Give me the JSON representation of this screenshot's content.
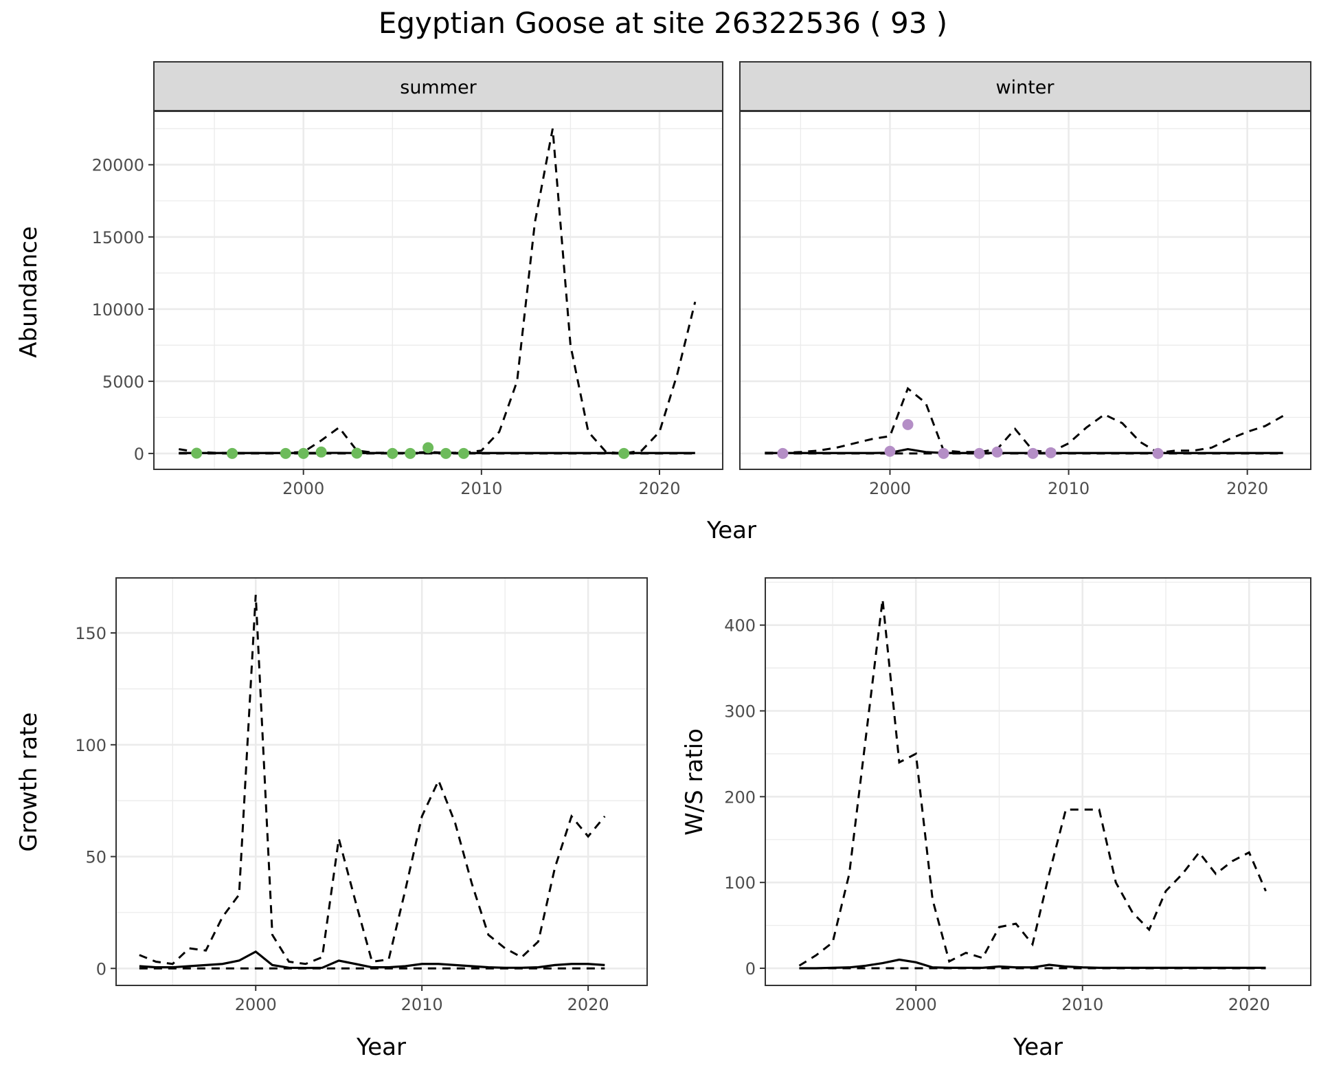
{
  "title": "Egyptian Goose at site 26322536 ( 93 )",
  "colors": {
    "summer_points": "#6dbb5b",
    "winter_points": "#b48ec6",
    "lines": "#000000",
    "strip_bg": "#d9d9d9",
    "grid": "#ebebeb"
  },
  "chart_data": [
    {
      "type": "line",
      "facet": "summer",
      "xlabel": "Year",
      "ylabel": "Abundance",
      "xlim": [
        1991.6,
        2023.55
      ],
      "ylim": [
        -1100,
        23700
      ],
      "xticks": [
        2000,
        2010,
        2020
      ],
      "yticks": [
        0,
        5000,
        10000,
        15000,
        20000
      ],
      "grid": true,
      "x": [
        1993,
        1994,
        1995,
        1996,
        1997,
        1998,
        1999,
        2000,
        2001,
        2002,
        2003,
        2004,
        2005,
        2006,
        2007,
        2008,
        2009,
        2010,
        2011,
        2012,
        2013,
        2014,
        2015,
        2016,
        2017,
        2018,
        2019,
        2020,
        2021,
        2022
      ],
      "upper": [
        300,
        100,
        50,
        30,
        30,
        30,
        50,
        100,
        900,
        1800,
        200,
        50,
        50,
        50,
        100,
        50,
        50,
        200,
        1500,
        5000,
        16000,
        22500,
        7500,
        1500,
        100,
        0,
        200,
        1500,
        5500,
        10500
      ],
      "fit": [
        30,
        30,
        30,
        30,
        30,
        30,
        30,
        30,
        40,
        40,
        30,
        30,
        30,
        30,
        40,
        30,
        30,
        30,
        30,
        30,
        30,
        30,
        30,
        30,
        30,
        30,
        30,
        30,
        30,
        30
      ],
      "lower": [
        0,
        0,
        0,
        0,
        0,
        0,
        0,
        0,
        0,
        0,
        0,
        0,
        0,
        0,
        0,
        0,
        0,
        0,
        0,
        0,
        0,
        0,
        0,
        0,
        0,
        0,
        0,
        0,
        0,
        0
      ],
      "points": {
        "x": [
          1994,
          1996,
          1999,
          2000,
          2001,
          2003,
          2005,
          2006,
          2007,
          2008,
          2009,
          2018
        ],
        "y": [
          20,
          0,
          0,
          0,
          100,
          20,
          0,
          0,
          400,
          0,
          0,
          0
        ]
      }
    },
    {
      "type": "line",
      "facet": "winter",
      "xlabel": "Year",
      "ylabel": "Abundance",
      "xlim": [
        1991.6,
        2023.55
      ],
      "ylim": [
        -1100,
        23700
      ],
      "xticks": [
        2000,
        2010,
        2020
      ],
      "yticks": [
        0,
        5000,
        10000,
        15000,
        20000
      ],
      "grid": true,
      "x": [
        1993,
        1994,
        1995,
        1996,
        1997,
        1998,
        1999,
        2000,
        2001,
        2002,
        2003,
        2004,
        2005,
        2006,
        2007,
        2008,
        2009,
        2010,
        2011,
        2012,
        2013,
        2014,
        2015,
        2016,
        2017,
        2018,
        2019,
        2020,
        2021,
        2022
      ],
      "upper": [
        50,
        50,
        100,
        200,
        400,
        700,
        1000,
        1200,
        4500,
        3500,
        200,
        100,
        100,
        300,
        1700,
        200,
        100,
        700,
        1800,
        2700,
        2100,
        800,
        50,
        200,
        200,
        400,
        1000,
        1500,
        1900,
        2600
      ],
      "fit": [
        30,
        30,
        30,
        30,
        30,
        30,
        30,
        50,
        300,
        100,
        30,
        30,
        30,
        30,
        30,
        30,
        30,
        30,
        30,
        30,
        30,
        30,
        30,
        30,
        30,
        30,
        30,
        30,
        30,
        30
      ],
      "lower": [
        0,
        0,
        0,
        0,
        0,
        0,
        0,
        0,
        0,
        0,
        0,
        0,
        0,
        0,
        0,
        0,
        0,
        0,
        0,
        0,
        0,
        0,
        0,
        0,
        0,
        0,
        0,
        0,
        0,
        0
      ],
      "points": {
        "x": [
          1994,
          2000,
          2001,
          2003,
          2005,
          2006,
          2008,
          2009,
          2015
        ],
        "y": [
          0,
          150,
          2000,
          0,
          0,
          100,
          0,
          50,
          0
        ]
      }
    },
    {
      "type": "line",
      "xlabel": "Year",
      "ylabel": "Growth rate",
      "xlim": [
        1991.6,
        2023.55
      ],
      "ylim": [
        -7.6,
        174.6
      ],
      "xticks": [
        2000,
        2010,
        2020
      ],
      "yticks": [
        0,
        50,
        100,
        150
      ],
      "grid": true,
      "x": [
        1993,
        1994,
        1995,
        1996,
        1997,
        1998,
        1999,
        2000,
        2001,
        2002,
        2003,
        2004,
        2005,
        2006,
        2007,
        2008,
        2009,
        2010,
        2011,
        2012,
        2013,
        2014,
        2015,
        2016,
        2017,
        2018,
        2019,
        2020,
        2021
      ],
      "upper": [
        6,
        3,
        2,
        9,
        8,
        23,
        33,
        167,
        15,
        3,
        2,
        5,
        58,
        30,
        3,
        4,
        35,
        68,
        84,
        65,
        38,
        15,
        9,
        5,
        12,
        45,
        68,
        59,
        68
      ],
      "fit": [
        1,
        0.5,
        0.5,
        1,
        1.5,
        2,
        3.5,
        7.5,
        1.5,
        0.3,
        0.2,
        0.3,
        3.5,
        2,
        0.5,
        0.5,
        1,
        2,
        2,
        1.5,
        1,
        0.5,
        0.3,
        0.3,
        0.5,
        1.5,
        2,
        2,
        1.5
      ],
      "lower": [
        0,
        0,
        0,
        0,
        0,
        0,
        0,
        0,
        0,
        0,
        0,
        0,
        0,
        0,
        0,
        0,
        0,
        0,
        0,
        0,
        0,
        0,
        0,
        0,
        0,
        0,
        0,
        0,
        0
      ]
    },
    {
      "type": "line",
      "xlabel": "Year",
      "ylabel": "W/S ratio",
      "xlim": [
        1990.96,
        2023.7
      ],
      "ylim": [
        -20,
        455
      ],
      "xticks": [
        2000,
        2010,
        2020
      ],
      "yticks": [
        0,
        100,
        200,
        300,
        400
      ],
      "grid": true,
      "x": [
        1993,
        1994,
        1995,
        1996,
        1997,
        1998,
        1999,
        2000,
        2001,
        2002,
        2003,
        2004,
        2005,
        2006,
        2007,
        2008,
        2009,
        2010,
        2011,
        2012,
        2013,
        2014,
        2015,
        2016,
        2017,
        2018,
        2019,
        2020,
        2021
      ],
      "upper": [
        3,
        15,
        30,
        110,
        270,
        430,
        240,
        250,
        80,
        8,
        18,
        12,
        48,
        52,
        28,
        110,
        185,
        185,
        185,
        100,
        65,
        45,
        90,
        110,
        135,
        110,
        125,
        135,
        90
      ],
      "fit": [
        0,
        0,
        0.5,
        1,
        3,
        6,
        10,
        7,
        1,
        0.5,
        0.5,
        0.5,
        2,
        1,
        1,
        4,
        2,
        1,
        0.5,
        0.5,
        0.5,
        0.5,
        0.5,
        0.5,
        0.5,
        0.5,
        0.5,
        0.5,
        0.5
      ],
      "lower": [
        0,
        0,
        0,
        0,
        0,
        0,
        0,
        0,
        0,
        0,
        0,
        0,
        0,
        0,
        0,
        0,
        0,
        0,
        0,
        0,
        0,
        0,
        0,
        0,
        0,
        0,
        0,
        0,
        0
      ]
    }
  ]
}
